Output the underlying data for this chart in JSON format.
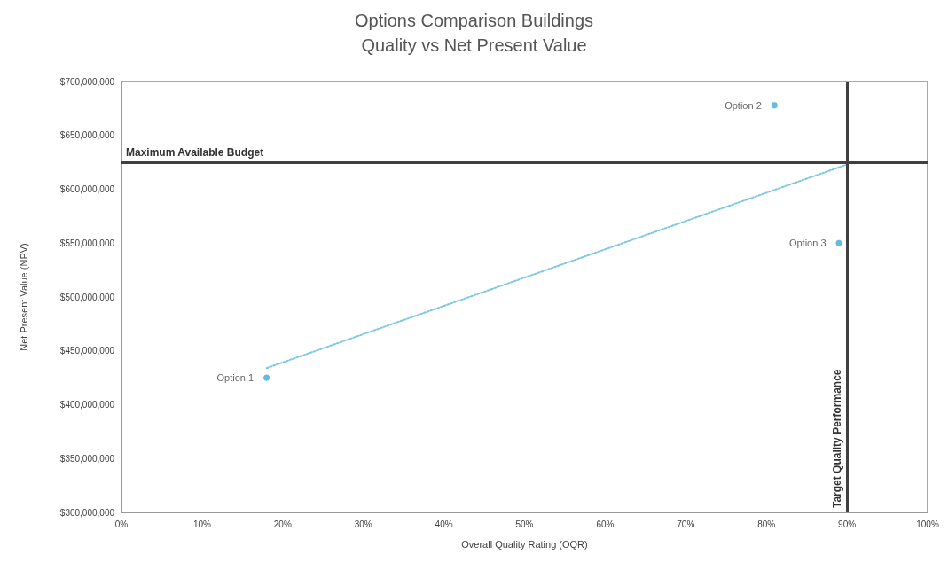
{
  "chart_data": {
    "type": "scatter",
    "title": "Options Comparison Buildings",
    "subtitle": "Quality vs Net Present Value",
    "xlabel": "Overall Quality Rating (OQR)",
    "ylabel": "Net Present Value (NPV)",
    "xlim": [
      0,
      100
    ],
    "xticks": [
      {
        "value": 0,
        "label": "0%"
      },
      {
        "value": 10,
        "label": "10%"
      },
      {
        "value": 20,
        "label": "20%"
      },
      {
        "value": 30,
        "label": "30%"
      },
      {
        "value": 40,
        "label": "40%"
      },
      {
        "value": 50,
        "label": "50%"
      },
      {
        "value": 60,
        "label": "60%"
      },
      {
        "value": 70,
        "label": "70%"
      },
      {
        "value": 80,
        "label": "80%"
      },
      {
        "value": 90,
        "label": "90%"
      },
      {
        "value": 100,
        "label": "100%"
      }
    ],
    "ylim": [
      300000000,
      700000000
    ],
    "yticks": [
      {
        "value": 300000000,
        "label": "$300,000,000"
      },
      {
        "value": 350000000,
        "label": "$350,000,000"
      },
      {
        "value": 400000000,
        "label": "$400,000,000"
      },
      {
        "value": 450000000,
        "label": "$450,000,000"
      },
      {
        "value": 500000000,
        "label": "$500,000,000"
      },
      {
        "value": 550000000,
        "label": "$550,000,000"
      },
      {
        "value": 600000000,
        "label": "$600,000,000"
      },
      {
        "value": 650000000,
        "label": "$650,000,000"
      },
      {
        "value": 700000000,
        "label": "$700,000,000"
      }
    ],
    "series": [
      {
        "name": "Option 1",
        "color": "#3fa9dc",
        "x": [
          18
        ],
        "values": [
          425000000
        ]
      },
      {
        "name": "Option 2",
        "color": "#3fa9dc",
        "x": [
          81
        ],
        "values": [
          678000000
        ]
      },
      {
        "name": "Option 3",
        "color": "#3fa9dc",
        "x": [
          89
        ],
        "values": [
          550000000
        ]
      },
      {
        "type": "line",
        "color": "#7fc8e0",
        "line_style": "dotted",
        "marker": "none",
        "x": [
          18,
          90
        ],
        "values": [
          434000000,
          623000000
        ]
      }
    ],
    "ref_lines": [
      {
        "axis": "y",
        "value": 625000000,
        "label": "Maximum Available Budget",
        "color": "#404040"
      },
      {
        "axis": "x",
        "value": 90,
        "label": "Target Quality Performance",
        "color": "#404040"
      }
    ],
    "marker": "circle",
    "grid": false,
    "legend": false
  }
}
